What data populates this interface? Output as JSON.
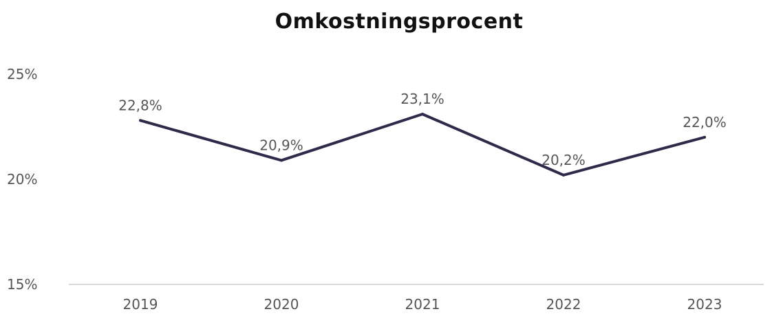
{
  "chart_data": {
    "type": "line",
    "title": "Omkostningsprocent",
    "xlabel": "",
    "ylabel": "",
    "categories": [
      "2019",
      "2020",
      "2021",
      "2022",
      "2023"
    ],
    "series": [
      {
        "values": [
          22.8,
          20.9,
          23.1,
          20.2,
          22.0
        ],
        "labels": [
          "22,8%",
          "20,9%",
          "23,1%",
          "20,2%",
          "22,0%"
        ],
        "color": "#2d2a4a"
      }
    ],
    "ylim": [
      15,
      25
    ],
    "yticks": [
      15,
      20,
      25
    ],
    "ytick_labels": [
      "15%",
      "20%",
      "25%"
    ],
    "grid": false,
    "legend": "none"
  }
}
